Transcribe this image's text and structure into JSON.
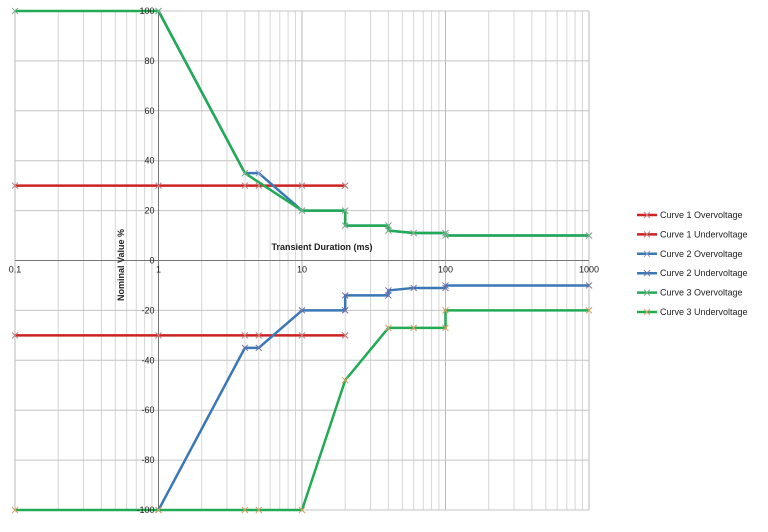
{
  "chart_data": {
    "type": "line",
    "title": "",
    "xlabel": "Transient Duration (ms)",
    "ylabel": "Nominal Value %",
    "xscale": "log",
    "xlim": [
      0.1,
      1000
    ],
    "ylim": [
      -100,
      100
    ],
    "x_ticks": [
      0.1,
      1,
      10,
      100,
      1000
    ],
    "x_tick_labels": [
      "0.1",
      "1",
      "10",
      "100",
      "1000"
    ],
    "y_ticks": [
      -100,
      -80,
      -60,
      -40,
      -20,
      0,
      20,
      40,
      60,
      80,
      100
    ],
    "y_tick_labels": [
      "-100",
      "-80",
      "-60",
      "-40",
      "-20",
      "0",
      "20",
      "40",
      "60",
      "80",
      "100"
    ],
    "grid": true,
    "legend_position": "right",
    "series": [
      {
        "name": "Curve 1 Overvoltage",
        "color": "#cc2222",
        "marker_color": "#c08080",
        "x": [
          0.1,
          1,
          4,
          5,
          10,
          20,
          20
        ],
        "y": [
          30,
          30,
          30,
          30,
          30,
          30,
          30
        ]
      },
      {
        "name": "Curve 1 Undervoltage",
        "color": "#cc2222",
        "marker_color": "#c08080",
        "x": [
          0.1,
          1,
          4,
          5,
          10,
          20,
          20
        ],
        "y": [
          -30,
          -30,
          -30,
          -30,
          -30,
          -30,
          -30
        ]
      },
      {
        "name": "Curve 2 Overvoltage",
        "color": "#3a78b5",
        "marker_color": "#8a9bbf",
        "x": [
          1,
          4,
          5,
          10,
          20,
          20,
          40,
          40,
          60,
          100,
          100,
          1000
        ],
        "y": [
          100,
          35,
          35,
          20,
          20,
          14,
          14,
          12,
          11,
          11,
          10,
          10
        ]
      },
      {
        "name": "Curve 2 Undervoltage",
        "color": "#3a78b5",
        "marker_color": "#7070a8",
        "x": [
          1,
          4,
          5,
          10,
          20,
          20,
          40,
          40,
          60,
          100,
          100,
          1000
        ],
        "y": [
          -100,
          -35,
          -35,
          -20,
          -20,
          -14,
          -14,
          -12,
          -11,
          -11,
          -10,
          -10
        ]
      },
      {
        "name": "Curve 3 Overvoltage",
        "color": "#22aa55",
        "marker_color": "#80b090",
        "x": [
          0.1,
          1,
          4,
          10,
          20,
          20,
          40,
          40,
          60,
          100,
          100,
          1000
        ],
        "y": [
          100,
          100,
          35,
          20,
          20,
          14,
          14,
          12,
          11,
          11,
          10,
          10
        ]
      },
      {
        "name": "Curve 3 Undervoltage",
        "color": "#22aa55",
        "marker_color": "#d4a060",
        "x": [
          0.1,
          1,
          4,
          5,
          10,
          20,
          40,
          60,
          100,
          100,
          1000
        ],
        "y": [
          -100,
          -100,
          -100,
          -100,
          -100,
          -48,
          -27,
          -27,
          -27,
          -20,
          -20
        ]
      }
    ]
  }
}
